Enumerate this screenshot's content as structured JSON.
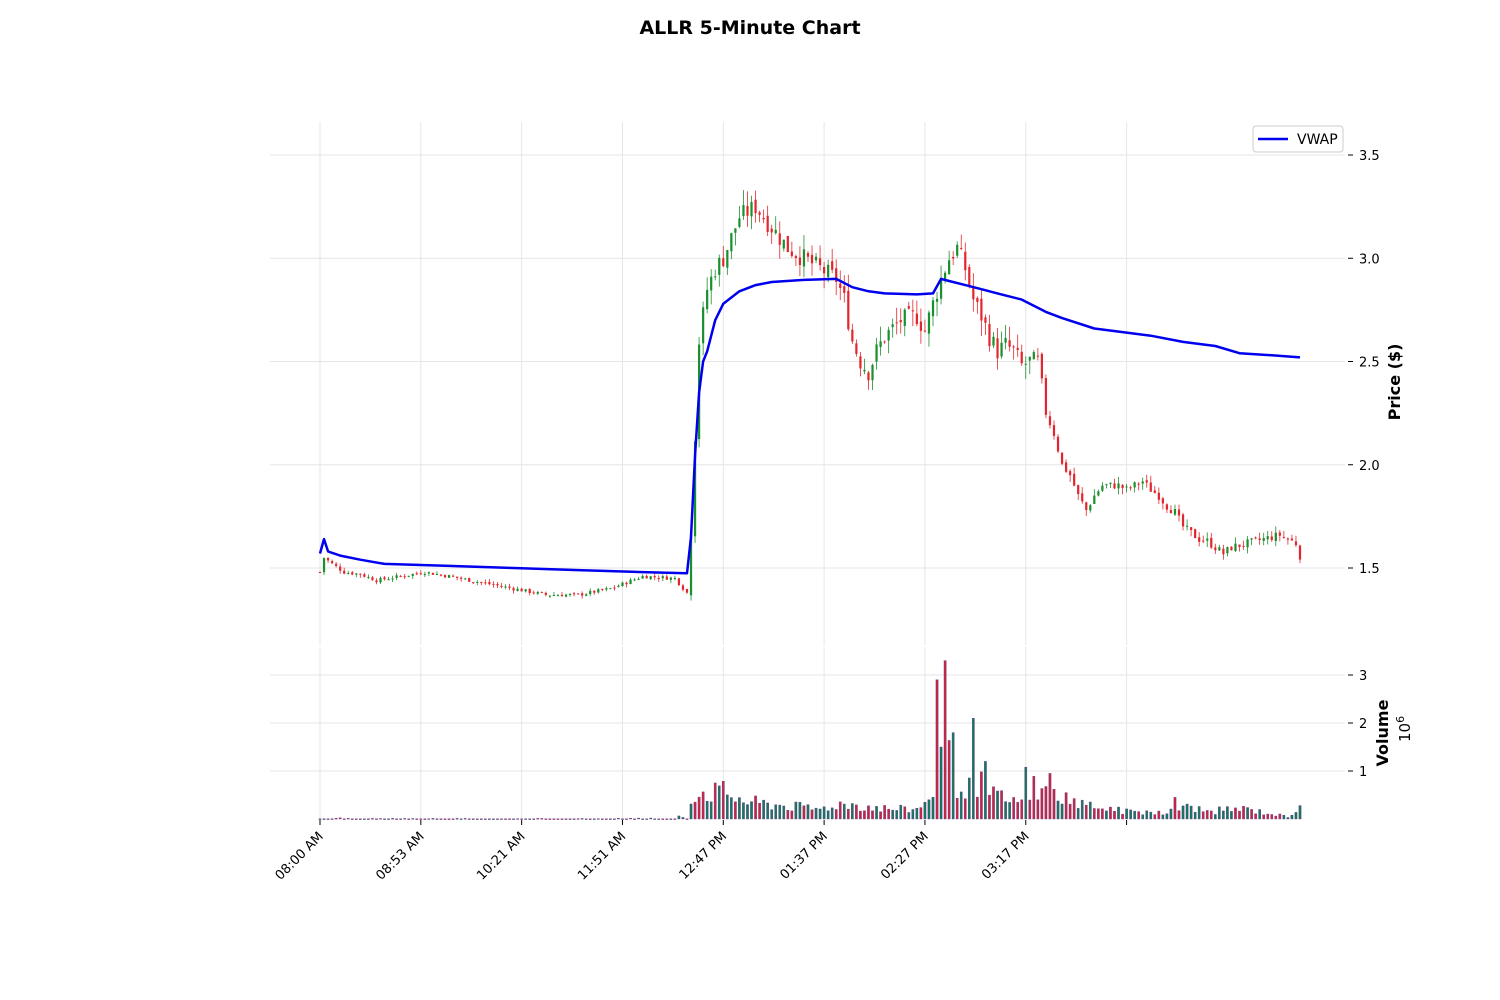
{
  "chart_data": {
    "type": "candlestick",
    "title": "ALLR 5-Minute Chart",
    "price_panel": {
      "ylabel": "Price ($)",
      "ylim": [
        1.19,
        3.65
      ],
      "yticks": [
        1.5,
        2.0,
        2.5,
        3.0,
        3.5
      ],
      "ytick_labels": [
        "1.5",
        "2.0",
        "2.5",
        "3.0",
        "3.5"
      ]
    },
    "volume_panel": {
      "ylabel": "Volume",
      "scale_label": "10",
      "scale_exponent": "6",
      "ylim": [
        0,
        3.3
      ],
      "yticks": [
        1,
        2,
        3
      ],
      "ytick_labels": [
        "1",
        "2",
        "3"
      ]
    },
    "x_tick_labels": [
      "08:00 AM",
      "08:53 AM",
      "10:21 AM",
      "11:51 AM",
      "12:47 PM",
      "01:37 PM",
      "02:27 PM",
      "03:17 PM"
    ],
    "grid": true,
    "legend": {
      "position": "top-right",
      "entries": [
        "VWAP"
      ]
    },
    "colors": {
      "up": "#1a8f2e",
      "down": "#e3262d",
      "vwap": "#0000ee",
      "grid": "#e6e6e6"
    },
    "close_anchors": [
      [
        0,
        1.48
      ],
      [
        1,
        1.55
      ],
      [
        3,
        1.52
      ],
      [
        6,
        1.48
      ],
      [
        10,
        1.47
      ],
      [
        14,
        1.44
      ],
      [
        20,
        1.46
      ],
      [
        26,
        1.48
      ],
      [
        32,
        1.46
      ],
      [
        40,
        1.43
      ],
      [
        48,
        1.4
      ],
      [
        56,
        1.37
      ],
      [
        64,
        1.37
      ],
      [
        72,
        1.4
      ],
      [
        80,
        1.46
      ],
      [
        88,
        1.45
      ],
      [
        91,
        1.38
      ],
      [
        92,
        1.7
      ],
      [
        94,
        2.6
      ],
      [
        96,
        2.85
      ],
      [
        98,
        2.95
      ],
      [
        100,
        3.0
      ],
      [
        102,
        3.1
      ],
      [
        104,
        3.2
      ],
      [
        108,
        3.25
      ],
      [
        112,
        3.15
      ],
      [
        116,
        3.05
      ],
      [
        120,
        3.0
      ],
      [
        124,
        2.95
      ],
      [
        128,
        2.9
      ],
      [
        130,
        2.8
      ],
      [
        132,
        2.6
      ],
      [
        134,
        2.5
      ],
      [
        136,
        2.45
      ],
      [
        138,
        2.55
      ],
      [
        140,
        2.62
      ],
      [
        144,
        2.7
      ],
      [
        148,
        2.72
      ],
      [
        150,
        2.65
      ],
      [
        152,
        2.78
      ],
      [
        154,
        2.9
      ],
      [
        156,
        3.0
      ],
      [
        158,
        3.05
      ],
      [
        160,
        2.95
      ],
      [
        162,
        2.8
      ],
      [
        164,
        2.72
      ],
      [
        166,
        2.62
      ],
      [
        168,
        2.55
      ],
      [
        170,
        2.58
      ],
      [
        172,
        2.55
      ],
      [
        174,
        2.48
      ],
      [
        176,
        2.5
      ],
      [
        178,
        2.5
      ],
      [
        180,
        2.25
      ],
      [
        182,
        2.15
      ],
      [
        184,
        2.0
      ],
      [
        186,
        1.95
      ],
      [
        188,
        1.85
      ],
      [
        190,
        1.78
      ],
      [
        192,
        1.85
      ],
      [
        194,
        1.9
      ],
      [
        196,
        1.9
      ],
      [
        198,
        1.9
      ],
      [
        200,
        1.88
      ],
      [
        202,
        1.9
      ],
      [
        204,
        1.92
      ],
      [
        206,
        1.88
      ],
      [
        208,
        1.85
      ],
      [
        210,
        1.8
      ],
      [
        212,
        1.77
      ],
      [
        214,
        1.7
      ],
      [
        216,
        1.67
      ],
      [
        218,
        1.64
      ],
      [
        220,
        1.63
      ],
      [
        222,
        1.6
      ],
      [
        224,
        1.57
      ],
      [
        226,
        1.6
      ],
      [
        228,
        1.61
      ],
      [
        230,
        1.62
      ],
      [
        232,
        1.63
      ],
      [
        234,
        1.64
      ],
      [
        236,
        1.65
      ],
      [
        238,
        1.66
      ],
      [
        240,
        1.64
      ],
      [
        242,
        1.62
      ],
      [
        243,
        1.56
      ]
    ],
    "volume_anchors": [
      [
        0,
        0.02
      ],
      [
        10,
        0.02
      ],
      [
        20,
        0.01
      ],
      [
        40,
        0.01
      ],
      [
        60,
        0.01
      ],
      [
        80,
        0.02
      ],
      [
        91,
        0.05
      ],
      [
        92,
        0.5
      ],
      [
        96,
        0.55
      ],
      [
        100,
        0.55
      ],
      [
        106,
        0.35
      ],
      [
        112,
        0.3
      ],
      [
        118,
        0.25
      ],
      [
        124,
        0.2
      ],
      [
        128,
        0.3
      ],
      [
        132,
        0.3
      ],
      [
        136,
        0.25
      ],
      [
        142,
        0.2
      ],
      [
        148,
        0.2
      ],
      [
        150,
        0.3
      ],
      [
        152,
        0.6
      ],
      [
        154,
        2.5
      ],
      [
        156,
        1.9
      ],
      [
        158,
        0.75
      ],
      [
        160,
        0.7
      ],
      [
        162,
        0.5
      ],
      [
        164,
        1.0
      ],
      [
        166,
        0.5
      ],
      [
        170,
        0.4
      ],
      [
        174,
        0.3
      ],
      [
        176,
        0.6
      ],
      [
        178,
        0.7
      ],
      [
        180,
        0.55
      ],
      [
        184,
        0.45
      ],
      [
        186,
        0.35
      ],
      [
        190,
        0.3
      ],
      [
        196,
        0.2
      ],
      [
        200,
        0.15
      ],
      [
        206,
        0.15
      ],
      [
        210,
        0.15
      ],
      [
        216,
        0.25
      ],
      [
        220,
        0.15
      ],
      [
        226,
        0.2
      ],
      [
        230,
        0.2
      ],
      [
        236,
        0.1
      ],
      [
        240,
        0.05
      ],
      [
        243,
        0.25
      ]
    ],
    "volume_spikes": [
      [
        150,
        0.35
      ],
      [
        151,
        0.4
      ],
      [
        153,
        2.9
      ],
      [
        154,
        1.5
      ],
      [
        155,
        3.3
      ],
      [
        157,
        1.8
      ],
      [
        162,
        2.1
      ],
      [
        165,
        1.2
      ],
      [
        172,
        0.45
      ],
      [
        175,
        1.08
      ],
      [
        178,
        0.4
      ],
      [
        181,
        0.95
      ],
      [
        185,
        0.55
      ],
      [
        212,
        0.45
      ],
      [
        243,
        0.28
      ]
    ],
    "vwap": [
      [
        0,
        1.57
      ],
      [
        1,
        1.64
      ],
      [
        2,
        1.58
      ],
      [
        5,
        1.56
      ],
      [
        10,
        1.54
      ],
      [
        16,
        1.52
      ],
      [
        32,
        1.51
      ],
      [
        48,
        1.5
      ],
      [
        64,
        1.49
      ],
      [
        80,
        1.48
      ],
      [
        91,
        1.475
      ],
      [
        92,
        1.65
      ],
      [
        93,
        2.05
      ],
      [
        94,
        2.35
      ],
      [
        95,
        2.5
      ],
      [
        96,
        2.55
      ],
      [
        98,
        2.7
      ],
      [
        100,
        2.78
      ],
      [
        104,
        2.84
      ],
      [
        108,
        2.87
      ],
      [
        112,
        2.885
      ],
      [
        120,
        2.895
      ],
      [
        128,
        2.9
      ],
      [
        132,
        2.86
      ],
      [
        136,
        2.84
      ],
      [
        140,
        2.83
      ],
      [
        148,
        2.825
      ],
      [
        152,
        2.83
      ],
      [
        154,
        2.9
      ],
      [
        156,
        2.89
      ],
      [
        160,
        2.87
      ],
      [
        164,
        2.85
      ],
      [
        168,
        2.83
      ],
      [
        174,
        2.8
      ],
      [
        180,
        2.74
      ],
      [
        184,
        2.71
      ],
      [
        192,
        2.66
      ],
      [
        200,
        2.64
      ],
      [
        206,
        2.625
      ],
      [
        214,
        2.595
      ],
      [
        222,
        2.575
      ],
      [
        228,
        2.54
      ],
      [
        236,
        2.53
      ],
      [
        243,
        2.52
      ]
    ]
  }
}
